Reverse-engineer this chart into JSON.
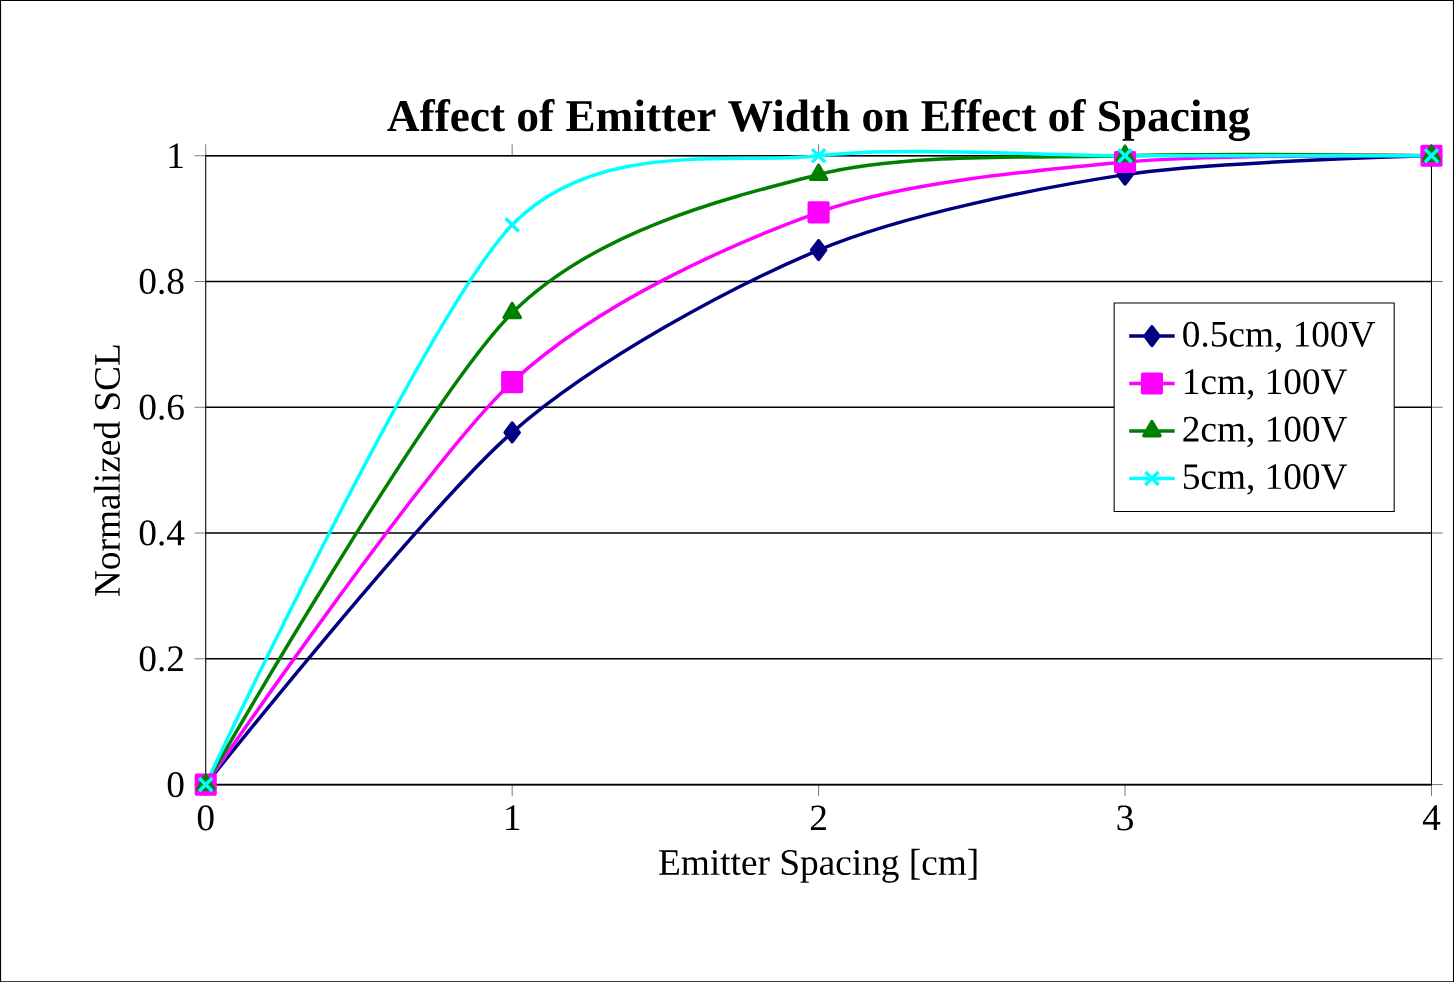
{
  "chart_data": {
    "type": "line",
    "title": "Affect of Emitter Width on Effect of Spacing",
    "xlabel": "Emitter Spacing [cm]",
    "ylabel": "Normalized SCL",
    "x": [
      0,
      1,
      2,
      3,
      4
    ],
    "series": [
      {
        "name": "0.5cm, 100V",
        "color": "#000080",
        "marker": "diamond",
        "values": [
          0,
          0.56,
          0.85,
          0.97,
          1
        ]
      },
      {
        "name": "1cm, 100V",
        "color": "#ff00ff",
        "marker": "square",
        "values": [
          0,
          0.64,
          0.91,
          0.99,
          1
        ]
      },
      {
        "name": "2cm, 100V",
        "color": "#008000",
        "marker": "triangle",
        "values": [
          0,
          0.75,
          0.97,
          1,
          1
        ]
      },
      {
        "name": "5cm, 100V",
        "color": "#00ffff",
        "marker": "cross",
        "values": [
          0,
          0.89,
          1,
          1,
          1
        ]
      }
    ],
    "xlim": [
      0,
      4
    ],
    "xticks": [
      0,
      1,
      2,
      3,
      4
    ],
    "ylim": [
      0,
      1
    ],
    "yticks": [
      0,
      0.2,
      0.4,
      0.6,
      0.8,
      1
    ],
    "grid": "y",
    "legend": "right",
    "line_style": "solid"
  }
}
